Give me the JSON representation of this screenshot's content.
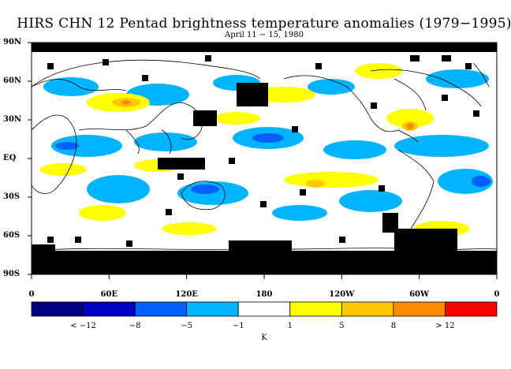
{
  "title": "HIRS CHN 12 Pentad brightness temperature anomalies (1979−1995)",
  "subtitle": "April 11 − 15, 1980",
  "y_axis": {
    "labels": [
      {
        "text": "90N",
        "lat": 90
      },
      {
        "text": "60N",
        "lat": 60
      },
      {
        "text": "30N",
        "lat": 30
      },
      {
        "text": "EQ",
        "lat": 0
      },
      {
        "text": "30S",
        "lat": -30
      },
      {
        "text": "60S",
        "lat": -60
      },
      {
        "text": "90S",
        "lat": -90
      }
    ]
  },
  "x_axis": {
    "labels": [
      {
        "text": "0",
        "lon": 0
      },
      {
        "text": "60E",
        "lon": 60
      },
      {
        "text": "120E",
        "lon": 120
      },
      {
        "text": "180",
        "lon": 180
      },
      {
        "text": "120W",
        "lon": 240
      },
      {
        "text": "60W",
        "lon": 300
      },
      {
        "text": "0",
        "lon": 360
      }
    ]
  },
  "colorbar": {
    "colors": [
      "#000080",
      "#0000c8",
      "#0060ff",
      "#00b4ff",
      "#ffffff",
      "#ffff00",
      "#ffc800",
      "#ff8c00",
      "#ff0000"
    ],
    "labels": [
      "< −12",
      "−8",
      "−5",
      "−1",
      "1",
      "5",
      "8",
      "> 12"
    ],
    "unit": "K"
  },
  "legend_colors": {
    "missing": "#000000",
    "land_outline": "#000000"
  }
}
